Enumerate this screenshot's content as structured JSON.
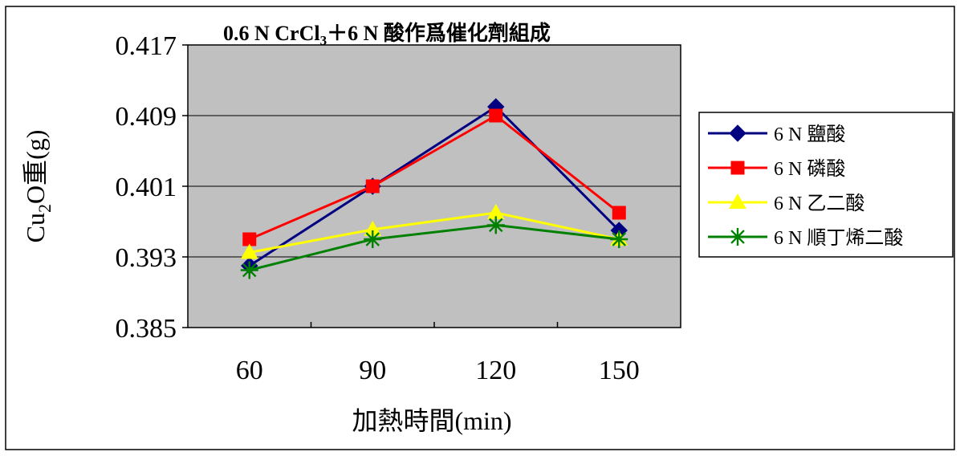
{
  "chart_data": {
    "type": "line",
    "title_prefix": "0.6 N CrCl",
    "title_sub": "3",
    "title_suffix": "＋6 N 酸作爲催化劑組成",
    "categories": [
      "60",
      "90",
      "120",
      "150"
    ],
    "ylim": [
      0.385,
      0.417
    ],
    "yticks": [
      0.385,
      0.393,
      0.401,
      0.409,
      0.417
    ],
    "ytick_labels": [
      "0.385",
      "0.393",
      "0.401",
      "0.409",
      "0.417"
    ],
    "xlabel": "加熱時間(min)",
    "ylabel_prefix": "Cu",
    "ylabel_sub": "2",
    "ylabel_suffix": "O重(g)",
    "grid": true,
    "legend_position": "right",
    "plot_background": "#c0c0c0",
    "series": [
      {
        "name": "6 N 鹽酸",
        "values": [
          0.392,
          0.401,
          0.41,
          0.396
        ],
        "color": "#000080",
        "marker": "diamond"
      },
      {
        "name": "6 N 磷酸",
        "values": [
          0.395,
          0.401,
          0.409,
          0.398
        ],
        "color": "#ff0000",
        "marker": "square"
      },
      {
        "name": "6 N 乙二酸",
        "values": [
          0.3935,
          0.3961,
          0.398,
          0.395
        ],
        "color": "#ffff00",
        "marker": "triangle"
      },
      {
        "name": "6 N 順丁烯二酸",
        "values": [
          0.3915,
          0.395,
          0.3966,
          0.395
        ],
        "color": "#008000",
        "marker": "star"
      }
    ]
  }
}
